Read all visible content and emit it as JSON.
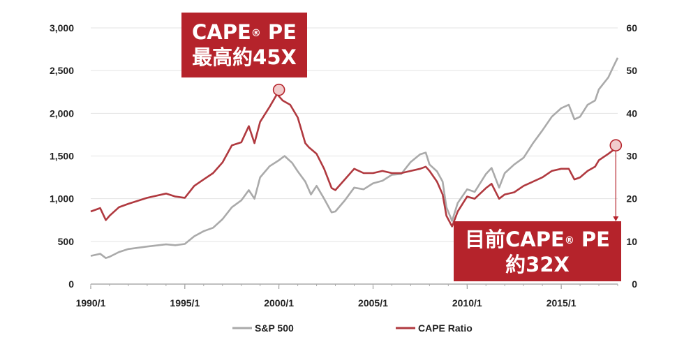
{
  "chart_data": {
    "type": "line",
    "x_ticks": [
      "1990/1",
      "1995/1",
      "2000/1",
      "2005/1",
      "2010/1",
      "2015/1"
    ],
    "y_left_ticks": [
      "0",
      "500",
      "1,000",
      "1,500",
      "2,000",
      "2,500",
      "3,000"
    ],
    "y_right_ticks": [
      "0",
      "10",
      "20",
      "30",
      "40",
      "50",
      "60"
    ],
    "y_left_lim": [
      0,
      3000
    ],
    "y_right_lim": [
      0,
      60
    ],
    "x_lim": [
      1990.0,
      2018.0
    ],
    "grid": "horizontal",
    "legend_position": "bottom",
    "series": [
      {
        "name": "S&P 500",
        "axis": "left",
        "color": "#aaaaaa",
        "points": [
          [
            1990.0,
            330
          ],
          [
            1990.5,
            355
          ],
          [
            1990.8,
            305
          ],
          [
            1991.0,
            320
          ],
          [
            1991.5,
            375
          ],
          [
            1992.0,
            410
          ],
          [
            1993.0,
            440
          ],
          [
            1994.0,
            465
          ],
          [
            1994.5,
            455
          ],
          [
            1995.0,
            470
          ],
          [
            1995.5,
            560
          ],
          [
            1996.0,
            620
          ],
          [
            1996.5,
            660
          ],
          [
            1997.0,
            760
          ],
          [
            1997.5,
            900
          ],
          [
            1998.0,
            980
          ],
          [
            1998.4,
            1100
          ],
          [
            1998.7,
            1000
          ],
          [
            1999.0,
            1250
          ],
          [
            1999.5,
            1380
          ],
          [
            2000.0,
            1450
          ],
          [
            2000.3,
            1500
          ],
          [
            2000.7,
            1420
          ],
          [
            2001.0,
            1320
          ],
          [
            2001.4,
            1200
          ],
          [
            2001.7,
            1050
          ],
          [
            2002.0,
            1150
          ],
          [
            2002.4,
            1000
          ],
          [
            2002.8,
            840
          ],
          [
            2003.0,
            850
          ],
          [
            2003.5,
            980
          ],
          [
            2004.0,
            1130
          ],
          [
            2004.5,
            1110
          ],
          [
            2005.0,
            1180
          ],
          [
            2005.5,
            1210
          ],
          [
            2006.0,
            1280
          ],
          [
            2006.5,
            1290
          ],
          [
            2007.0,
            1430
          ],
          [
            2007.5,
            1520
          ],
          [
            2007.8,
            1540
          ],
          [
            2008.0,
            1400
          ],
          [
            2008.4,
            1320
          ],
          [
            2008.7,
            1200
          ],
          [
            2008.9,
            900
          ],
          [
            2009.2,
            740
          ],
          [
            2009.5,
            950
          ],
          [
            2010.0,
            1110
          ],
          [
            2010.4,
            1080
          ],
          [
            2011.0,
            1290
          ],
          [
            2011.3,
            1360
          ],
          [
            2011.7,
            1130
          ],
          [
            2012.0,
            1300
          ],
          [
            2012.5,
            1400
          ],
          [
            2013.0,
            1480
          ],
          [
            2013.5,
            1650
          ],
          [
            2014.0,
            1800
          ],
          [
            2014.5,
            1960
          ],
          [
            2015.0,
            2060
          ],
          [
            2015.4,
            2100
          ],
          [
            2015.7,
            1930
          ],
          [
            2016.0,
            1960
          ],
          [
            2016.4,
            2100
          ],
          [
            2016.8,
            2150
          ],
          [
            2017.0,
            2280
          ],
          [
            2017.5,
            2420
          ],
          [
            2017.8,
            2560
          ],
          [
            2018.0,
            2650
          ]
        ]
      },
      {
        "name": "CAPE Ratio",
        "axis": "right",
        "color": "#b0393f",
        "points": [
          [
            1990.0,
            17
          ],
          [
            1990.5,
            17.8
          ],
          [
            1990.8,
            15
          ],
          [
            1991.0,
            16
          ],
          [
            1991.5,
            18
          ],
          [
            1992.0,
            18.8
          ],
          [
            1993.0,
            20.2
          ],
          [
            1994.0,
            21.2
          ],
          [
            1994.5,
            20.5
          ],
          [
            1995.0,
            20.2
          ],
          [
            1995.5,
            23
          ],
          [
            1996.0,
            24.5
          ],
          [
            1996.5,
            26
          ],
          [
            1997.0,
            28.5
          ],
          [
            1997.5,
            32.5
          ],
          [
            1998.0,
            33.2
          ],
          [
            1998.4,
            37
          ],
          [
            1998.7,
            33
          ],
          [
            1999.0,
            38
          ],
          [
            1999.5,
            41.5
          ],
          [
            1999.9,
            44.5
          ],
          [
            2000.2,
            43
          ],
          [
            2000.6,
            42
          ],
          [
            2001.0,
            39
          ],
          [
            2001.4,
            33
          ],
          [
            2001.6,
            32
          ],
          [
            2002.0,
            30.5
          ],
          [
            2002.4,
            27
          ],
          [
            2002.8,
            22.5
          ],
          [
            2003.0,
            22
          ],
          [
            2003.5,
            24.5
          ],
          [
            2004.0,
            27
          ],
          [
            2004.5,
            26
          ],
          [
            2005.0,
            26
          ],
          [
            2005.5,
            26.5
          ],
          [
            2006.0,
            26
          ],
          [
            2006.5,
            26
          ],
          [
            2007.0,
            26.5
          ],
          [
            2007.5,
            27
          ],
          [
            2007.8,
            27.5
          ],
          [
            2008.0,
            26.5
          ],
          [
            2008.4,
            24
          ],
          [
            2008.7,
            21
          ],
          [
            2008.9,
            16
          ],
          [
            2009.2,
            13.5
          ],
          [
            2009.5,
            17
          ],
          [
            2010.0,
            20.5
          ],
          [
            2010.4,
            20
          ],
          [
            2011.0,
            22.5
          ],
          [
            2011.3,
            23.5
          ],
          [
            2011.7,
            20
          ],
          [
            2012.0,
            21
          ],
          [
            2012.5,
            21.5
          ],
          [
            2013.0,
            23
          ],
          [
            2013.5,
            24
          ],
          [
            2014.0,
            25
          ],
          [
            2014.5,
            26.5
          ],
          [
            2015.0,
            27
          ],
          [
            2015.4,
            27
          ],
          [
            2015.7,
            24.5
          ],
          [
            2016.0,
            25
          ],
          [
            2016.4,
            26.5
          ],
          [
            2016.8,
            27.5
          ],
          [
            2017.0,
            29
          ],
          [
            2017.5,
            30.5
          ],
          [
            2017.8,
            31.5
          ],
          [
            2018.0,
            32
          ]
        ]
      }
    ],
    "annotations": [
      {
        "id": "peak",
        "line1": "CAPE",
        "reg": "®",
        "line1b": " PE",
        "line2": "最高約45X",
        "x": 2000.0,
        "y": 45.5,
        "axis": "right"
      },
      {
        "id": "current",
        "line1": "目前CAPE",
        "reg": "®",
        "line1b": " PE",
        "line2": "約32X",
        "x": 2017.9,
        "y": 32.5,
        "axis": "right"
      }
    ]
  }
}
